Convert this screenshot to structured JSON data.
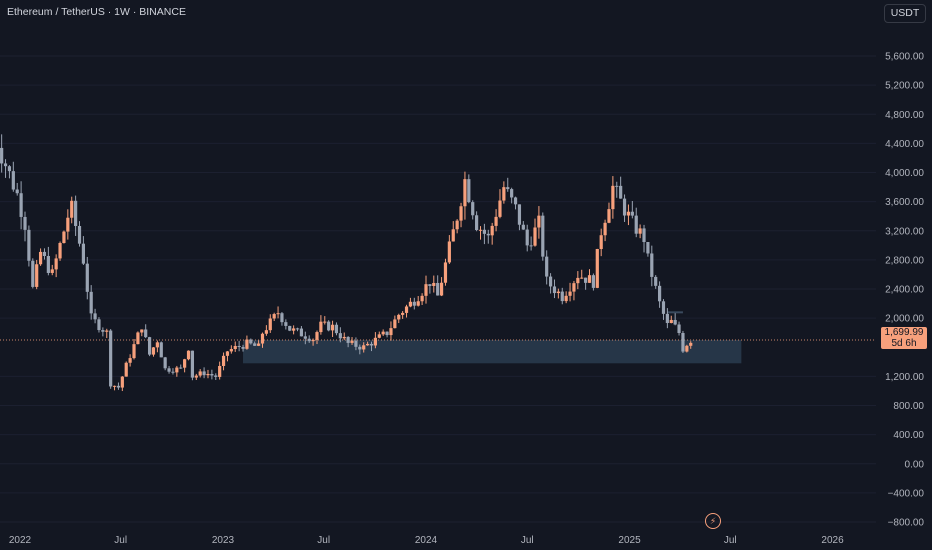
{
  "header": {
    "title": "Ethereum / TetherUS · 1W · BINANCE"
  },
  "price_axis": {
    "currency": "USDT"
  },
  "last_price": {
    "value": "1,699.99",
    "countdown": "5d 6h"
  },
  "colors": {
    "background": "#131722",
    "up": "#f7a07c",
    "down": "#9aa4b3",
    "zone": "#2a3c4f",
    "price_line": "#f7a07c"
  },
  "icons": {
    "alert": "lightning-icon"
  },
  "chart_data": {
    "type": "candlestick",
    "symbol": "Ethereum / TetherUS",
    "interval": "1W",
    "exchange": "BINANCE",
    "ylim": [
      -900,
      5900
    ],
    "y_ticks": [
      5600,
      5200,
      4800,
      4400,
      4000,
      3600,
      3200,
      2800,
      2400,
      2000,
      1200,
      800,
      400,
      0,
      -400,
      -800
    ],
    "y_tick_labels": [
      "5,600.00",
      "5,200.00",
      "4,800.00",
      "4,400.00",
      "4,000.00",
      "3,600.00",
      "3,200.00",
      "2,800.00",
      "2,400.00",
      "2,000.00",
      "1,200.00",
      "800.00",
      "400.00",
      "0.00",
      "−400.00",
      "−800.00"
    ],
    "x_ticks": [
      {
        "label": "2022",
        "date": "2022-01-01"
      },
      {
        "label": "Jul",
        "date": "2022-07-01"
      },
      {
        "label": "2023",
        "date": "2023-01-01"
      },
      {
        "label": "Jul",
        "date": "2023-07-01"
      },
      {
        "label": "2024",
        "date": "2024-01-01"
      },
      {
        "label": "Jul",
        "date": "2024-07-01"
      },
      {
        "label": "2025",
        "date": "2025-01-01"
      },
      {
        "label": "Jul",
        "date": "2025-07-01"
      },
      {
        "label": "2026",
        "date": "2026-01-01"
      }
    ],
    "zone": {
      "low": 1380,
      "high": 1700,
      "from": "2023-02-06",
      "to": "2025-07-21"
    },
    "horizontal_ray": {
      "value": 2080,
      "from": "2025-03-10",
      "to": "2025-04-07"
    },
    "last_price": 1699.99,
    "anchors": [
      {
        "date": "2021-11-08",
        "price": 4750
      },
      {
        "date": "2021-11-29",
        "price": 4250
      },
      {
        "date": "2021-12-27",
        "price": 3700
      },
      {
        "date": "2022-01-10",
        "price": 3300
      },
      {
        "date": "2022-01-24",
        "price": 2400
      },
      {
        "date": "2022-02-07",
        "price": 2900
      },
      {
        "date": "2022-02-28",
        "price": 2600
      },
      {
        "date": "2022-03-28",
        "price": 3400
      },
      {
        "date": "2022-04-04",
        "price": 3500
      },
      {
        "date": "2022-04-25",
        "price": 2800
      },
      {
        "date": "2022-05-09",
        "price": 2000
      },
      {
        "date": "2022-06-06",
        "price": 1800
      },
      {
        "date": "2022-06-13",
        "price": 1100
      },
      {
        "date": "2022-06-27",
        "price": 1050
      },
      {
        "date": "2022-07-11",
        "price": 1350
      },
      {
        "date": "2022-08-08",
        "price": 1900
      },
      {
        "date": "2022-08-22",
        "price": 1500
      },
      {
        "date": "2022-09-05",
        "price": 1700
      },
      {
        "date": "2022-09-19",
        "price": 1300
      },
      {
        "date": "2022-10-17",
        "price": 1300
      },
      {
        "date": "2022-10-31",
        "price": 1600
      },
      {
        "date": "2022-11-07",
        "price": 1200
      },
      {
        "date": "2022-11-28",
        "price": 1250
      },
      {
        "date": "2022-12-19",
        "price": 1200
      },
      {
        "date": "2023-01-09",
        "price": 1550
      },
      {
        "date": "2023-02-13",
        "price": 1650
      },
      {
        "date": "2023-03-06",
        "price": 1600
      },
      {
        "date": "2023-03-13",
        "price": 1800
      },
      {
        "date": "2023-04-10",
        "price": 2080
      },
      {
        "date": "2023-05-01",
        "price": 1850
      },
      {
        "date": "2023-06-12",
        "price": 1720
      },
      {
        "date": "2023-06-26",
        "price": 1900
      },
      {
        "date": "2023-07-17",
        "price": 1880
      },
      {
        "date": "2023-08-14",
        "price": 1650
      },
      {
        "date": "2023-09-11",
        "price": 1600
      },
      {
        "date": "2023-10-23",
        "price": 1800
      },
      {
        "date": "2023-11-13",
        "price": 2050
      },
      {
        "date": "2023-12-11",
        "price": 2250
      },
      {
        "date": "2024-01-08",
        "price": 2500
      },
      {
        "date": "2024-01-22",
        "price": 2300
      },
      {
        "date": "2024-02-26",
        "price": 3400
      },
      {
        "date": "2024-03-11",
        "price": 3900
      },
      {
        "date": "2024-04-01",
        "price": 3300
      },
      {
        "date": "2024-04-22",
        "price": 3100
      },
      {
        "date": "2024-05-20",
        "price": 3800
      },
      {
        "date": "2024-06-10",
        "price": 3500
      },
      {
        "date": "2024-07-01",
        "price": 3000
      },
      {
        "date": "2024-07-22",
        "price": 3300
      },
      {
        "date": "2024-08-05",
        "price": 2500
      },
      {
        "date": "2024-09-02",
        "price": 2300
      },
      {
        "date": "2024-09-30",
        "price": 2600
      },
      {
        "date": "2024-10-28",
        "price": 2500
      },
      {
        "date": "2024-11-11",
        "price": 3200
      },
      {
        "date": "2024-12-02",
        "price": 3800
      },
      {
        "date": "2024-12-16",
        "price": 3600
      },
      {
        "date": "2025-01-06",
        "price": 3300
      },
      {
        "date": "2025-01-27",
        "price": 3100
      },
      {
        "date": "2025-02-03",
        "price": 2800
      },
      {
        "date": "2025-02-24",
        "price": 2200
      },
      {
        "date": "2025-03-10",
        "price": 1900
      },
      {
        "date": "2025-03-17",
        "price": 1950
      },
      {
        "date": "2025-03-31",
        "price": 1800
      },
      {
        "date": "2025-04-07",
        "price": 1580
      },
      {
        "date": "2025-04-14",
        "price": 1650
      },
      {
        "date": "2025-04-21",
        "price": 1700
      }
    ]
  }
}
